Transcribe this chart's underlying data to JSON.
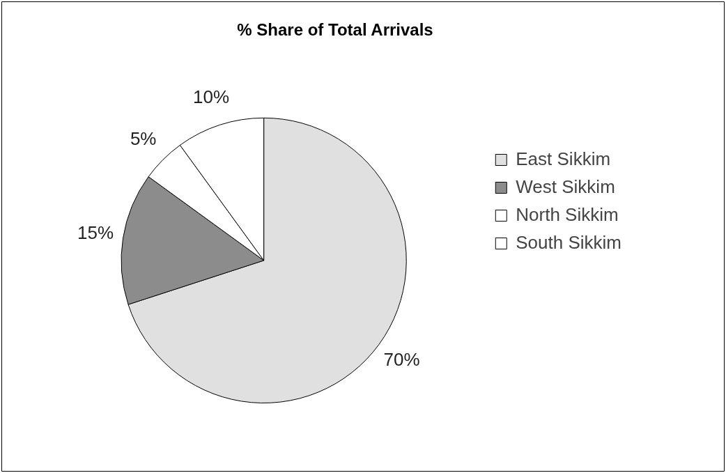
{
  "chart_data": {
    "type": "pie",
    "title": "% Share of Total Arrivals",
    "categories": [
      "East Sikkim",
      "West Sikkim",
      "North Sikkim",
      "South Sikkim"
    ],
    "values": [
      70,
      15,
      5,
      10
    ],
    "colors": [
      "#e0e0e0",
      "#8c8c8c",
      "#ffffff",
      "#ffffff"
    ],
    "value_labels": [
      "70%",
      "15%",
      "5%",
      "10%"
    ],
    "legend": "right"
  }
}
